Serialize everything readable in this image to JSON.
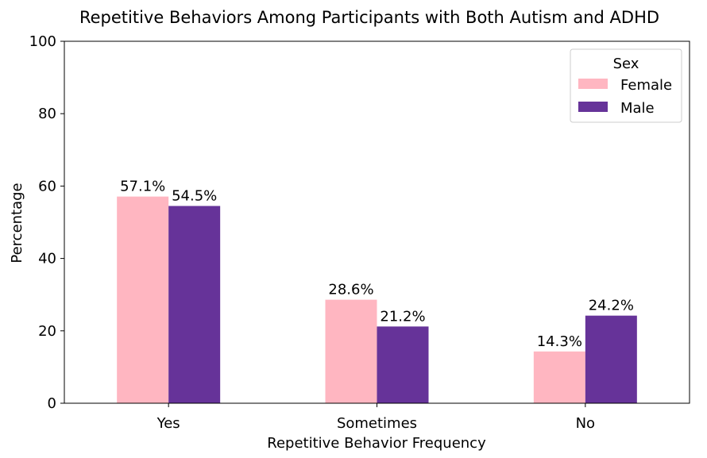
{
  "chart_data": {
    "type": "bar",
    "title": "Repetitive Behaviors Among Participants with Both Autism and ADHD",
    "xlabel": "Repetitive Behavior Frequency",
    "ylabel": "Percentage",
    "categories": [
      "Yes",
      "Sometimes",
      "No"
    ],
    "series": [
      {
        "name": "Female",
        "color": "#ffb6c1",
        "values": [
          57.1,
          28.6,
          14.3
        ],
        "labels": [
          "57.1%",
          "28.6%",
          "14.3%"
        ]
      },
      {
        "name": "Male",
        "color": "#663399",
        "values": [
          54.5,
          21.2,
          24.2
        ],
        "labels": [
          "54.5%",
          "21.2%",
          "24.2%"
        ]
      }
    ],
    "ylim": [
      0,
      100
    ],
    "yticks": [
      0,
      20,
      40,
      60,
      80,
      100
    ],
    "grid": false,
    "legend": {
      "title": "Sex",
      "position": "top-right"
    }
  }
}
